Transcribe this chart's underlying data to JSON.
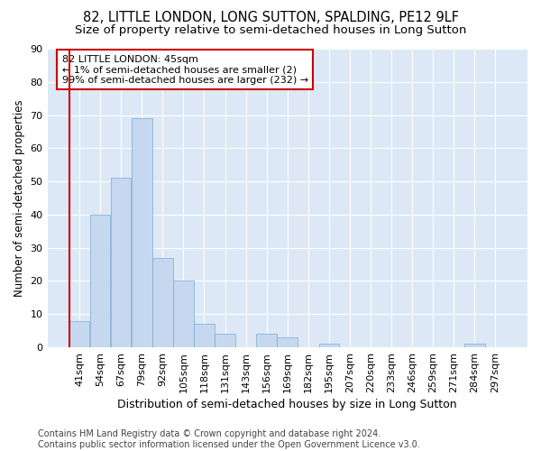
{
  "title1": "82, LITTLE LONDON, LONG SUTTON, SPALDING, PE12 9LF",
  "title2": "Size of property relative to semi-detached houses in Long Sutton",
  "xlabel": "Distribution of semi-detached houses by size in Long Sutton",
  "ylabel": "Number of semi-detached properties",
  "categories": [
    "41sqm",
    "54sqm",
    "67sqm",
    "79sqm",
    "92sqm",
    "105sqm",
    "118sqm",
    "131sqm",
    "143sqm",
    "156sqm",
    "169sqm",
    "182sqm",
    "195sqm",
    "207sqm",
    "220sqm",
    "233sqm",
    "246sqm",
    "259sqm",
    "271sqm",
    "284sqm",
    "297sqm"
  ],
  "values": [
    8,
    40,
    51,
    69,
    27,
    20,
    7,
    4,
    0,
    4,
    3,
    0,
    1,
    0,
    0,
    0,
    0,
    0,
    0,
    1,
    0
  ],
  "bar_color": "#c5d8f0",
  "bar_edge_color": "#7aaad0",
  "annotation_text": "82 LITTLE LONDON: 45sqm\n← 1% of semi-detached houses are smaller (2)\n99% of semi-detached houses are larger (232) →",
  "annotation_box_color": "#ffffff",
  "annotation_box_edge": "#cc0000",
  "highlight_color": "#cc0000",
  "ylim": [
    0,
    90
  ],
  "yticks": [
    0,
    10,
    20,
    30,
    40,
    50,
    60,
    70,
    80,
    90
  ],
  "footer": "Contains HM Land Registry data © Crown copyright and database right 2024.\nContains public sector information licensed under the Open Government Licence v3.0.",
  "bg_color": "#dce8f5",
  "grid_color": "#ffffff",
  "title1_fontsize": 10.5,
  "title2_fontsize": 9.5,
  "xlabel_fontsize": 9,
  "ylabel_fontsize": 8.5,
  "tick_fontsize": 8,
  "footer_fontsize": 7
}
